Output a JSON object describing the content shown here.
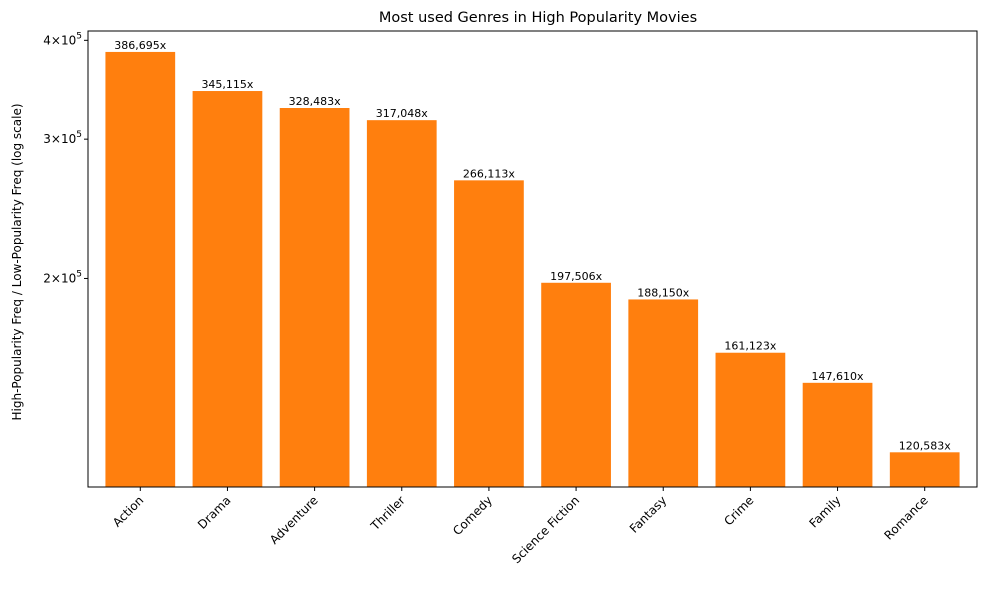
{
  "chart_data": {
    "type": "bar",
    "title": "Most used Genres in High Popularity Movies",
    "xlabel": "",
    "ylabel": "High-Popularity Freq / Low-Popularity Freq (log scale)",
    "yscale": "log",
    "ylim": [
      109000,
      411000
    ],
    "yticks": [
      {
        "value": 200000,
        "base": "2",
        "exp": "5"
      },
      {
        "value": 300000,
        "base": "3",
        "exp": "5"
      },
      {
        "value": 400000,
        "base": "4",
        "exp": "5"
      }
    ],
    "bar_color": "#ff7f0e",
    "categories": [
      "Action",
      "Drama",
      "Adventure",
      "Thriller",
      "Comedy",
      "Science Fiction",
      "Fantasy",
      "Crime",
      "Family",
      "Romance"
    ],
    "values": [
      386695,
      345115,
      328483,
      317048,
      266113,
      197506,
      188150,
      161123,
      147610,
      120583
    ],
    "value_labels": [
      "386,695x",
      "345,115x",
      "328,483x",
      "317,048x",
      "266,113x",
      "197,506x",
      "188,150x",
      "161,123x",
      "147,610x",
      "120,583x"
    ],
    "grid": false,
    "legend": "none"
  }
}
